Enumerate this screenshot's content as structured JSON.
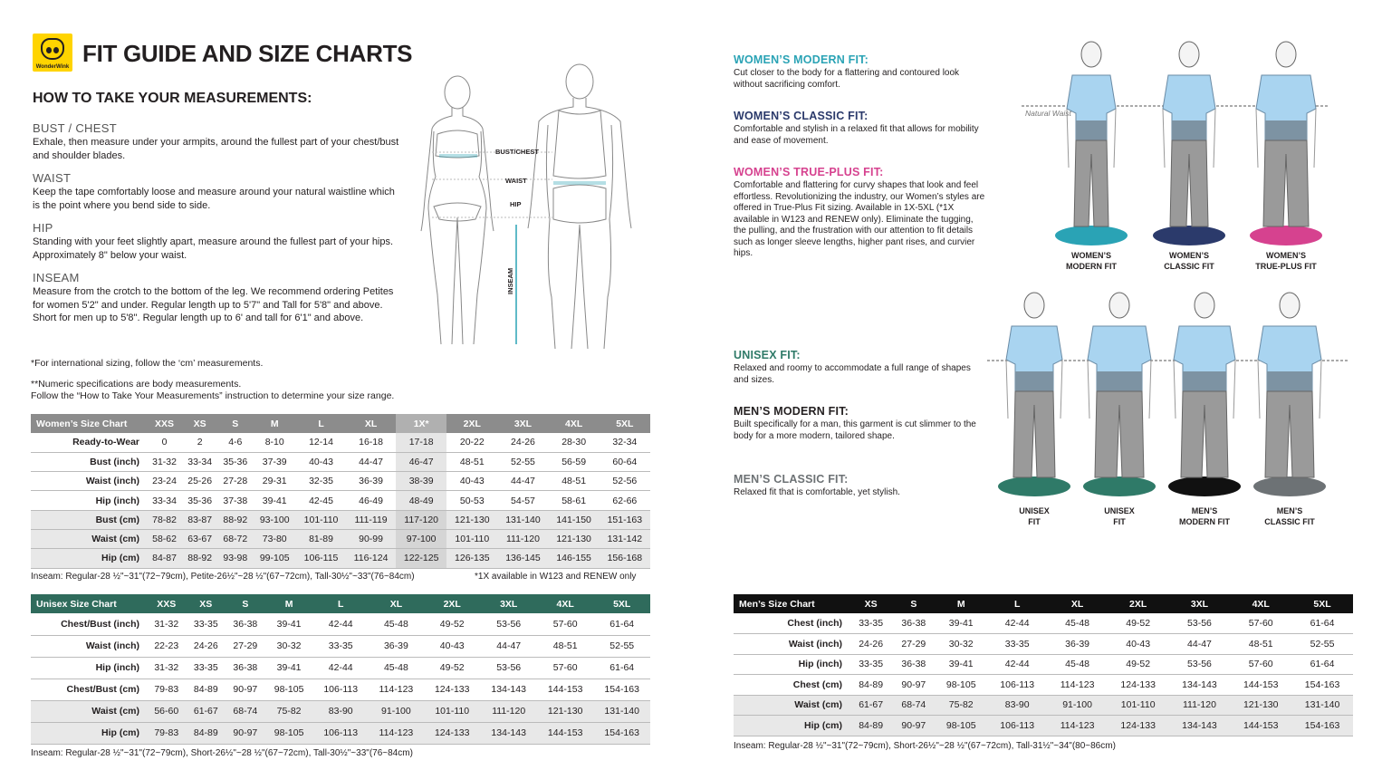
{
  "header": {
    "title": "FIT GUIDE AND SIZE CHARTS",
    "logo_text": "WonderWink"
  },
  "measure": {
    "heading": "HOW TO TAKE YOUR MEASUREMENTS:",
    "sections": [
      {
        "title": "BUST / CHEST",
        "text": "Exhale, then measure under your armpits, around the fullest part of your chest/bust and shoulder blades."
      },
      {
        "title": "WAIST",
        "text": "Keep the tape comfortably loose and measure around your natural waistline which is the point where you bend side to side."
      },
      {
        "title": "HIP",
        "text": "Standing with your feet slightly apart, measure around the fullest part of your hips. Approximately 8\" below your waist."
      },
      {
        "title": "INSEAM",
        "text": "Measure from the crotch to the bottom of the leg. We recommend ordering Petites for women 5'2\" and under.  Regular length up to 5'7\" and Tall for 5'8\" and above.  Short for men up to 5'8\". Regular length up to 6' and tall for 6'1\" and above."
      }
    ],
    "note1": "*For international sizing, follow the ‘cm’ measurements.",
    "note2a": "**Numeric specifications are body measurements.",
    "note2b": "Follow the “How to Take Your Measurements” instruction to determine your size range."
  },
  "diagram": {
    "bust_label": "BUST/CHEST",
    "waist_label": "WAIST",
    "hip_label": "HIP",
    "inseam_label": "INSEAM"
  },
  "fits_women": [
    {
      "title": "WOMEN’S MODERN FIT:",
      "color": "#2aa3b5",
      "text": "Cut closer to the body for a flattering and contoured look without sacrificing comfort."
    },
    {
      "title": "WOMEN’S CLASSIC FIT:",
      "color": "#2b3a6b",
      "text": "Comfortable and stylish in a relaxed fit that allows for mobility and ease of movement."
    },
    {
      "title": "WOMEN’S TRUE-PLUS FIT:",
      "color": "#d6428f",
      "text": "Comfortable and flattering for curvy shapes that look and feel effortless. Revolutionizing the industry, our Women’s styles are offered in True-Plus Fit sizing. Available in 1X-5XL (*1X available in W123 and RENEW only). Eliminate the tugging, the pulling, and the frustration with our attention to fit details such as longer sleeve lengths, higher pant rises, and curvier hips."
    }
  ],
  "fits_unisex": [
    {
      "title": "UNISEX FIT:",
      "color": "#2f7a68",
      "text": "Relaxed and roomy to accommodate a full range of shapes and sizes."
    },
    {
      "title": "MEN’S MODERN FIT:",
      "color": "#231f20",
      "text": "Built specifically for a man, this garment is cut slimmer to the body for a more modern, tailored shape."
    },
    {
      "title": "MEN’S CLASSIC FIT:",
      "color": "#6d7275",
      "text": "Relaxed fit that is comfortable, yet stylish."
    }
  ],
  "figures": {
    "natural_waist": "Natural Waist",
    "women": [
      {
        "l1": "WOMEN’S",
        "l2": "MODERN FIT",
        "base": "#2aa3b5"
      },
      {
        "l1": "WOMEN’S",
        "l2": "CLASSIC FIT",
        "base": "#2b3a6b"
      },
      {
        "l1": "WOMEN’S",
        "l2": "TRUE-PLUS FIT",
        "base": "#d6428f"
      }
    ],
    "men": [
      {
        "l1": "UNISEX",
        "l2": "FIT",
        "base": "#2f7a68"
      },
      {
        "l1": "UNISEX",
        "l2": "FIT",
        "base": "#2f7a68"
      },
      {
        "l1": "MEN’S",
        "l2": "MODERN FIT",
        "base": "#111111"
      },
      {
        "l1": "MEN’S",
        "l2": "CLASSIC FIT",
        "base": "#6d7275"
      }
    ]
  },
  "womens_table": {
    "title": "Women’s Size Chart",
    "color": "#8c8c8c",
    "sizes": [
      "XXS",
      "XS",
      "S",
      "M",
      "L",
      "XL",
      "1X*",
      "2XL",
      "3XL",
      "4XL",
      "5XL"
    ],
    "rows": [
      {
        "label": "Ready-to-Wear",
        "values": [
          "0",
          "2",
          "4-6",
          "8-10",
          "12-14",
          "16-18",
          "17-18",
          "20-22",
          "24-26",
          "28-30",
          "32-34"
        ]
      },
      {
        "label": "Bust (inch)",
        "values": [
          "31-32",
          "33-34",
          "35-36",
          "37-39",
          "40-43",
          "44-47",
          "46-47",
          "48-51",
          "52-55",
          "56-59",
          "60-64"
        ]
      },
      {
        "label": "Waist (inch)",
        "values": [
          "23-24",
          "25-26",
          "27-28",
          "29-31",
          "32-35",
          "36-39",
          "38-39",
          "40-43",
          "44-47",
          "48-51",
          "52-56"
        ]
      },
      {
        "label": "Hip (inch)",
        "values": [
          "33-34",
          "35-36",
          "37-38",
          "39-41",
          "42-45",
          "46-49",
          "48-49",
          "50-53",
          "54-57",
          "58-61",
          "62-66"
        ]
      },
      {
        "label": "Bust (cm)",
        "values": [
          "78-82",
          "83-87",
          "88-92",
          "93-100",
          "101-110",
          "111-119",
          "117-120",
          "121-130",
          "131-140",
          "141-150",
          "151-163"
        ]
      },
      {
        "label": "Waist (cm)",
        "values": [
          "58-62",
          "63-67",
          "68-72",
          "73-80",
          "81-89",
          "90-99",
          "97-100",
          "101-110",
          "111-120",
          "121-130",
          "131-142"
        ]
      },
      {
        "label": "Hip (cm)",
        "values": [
          "84-87",
          "88-92",
          "93-98",
          "99-105",
          "106-115",
          "116-124",
          "122-125",
          "126-135",
          "136-145",
          "146-155",
          "156-168"
        ]
      }
    ],
    "inseam": "Inseam: Regular-28 ½\"~31\"(72~79cm),  Petite-26½\"~28 ½\"(67~72cm),  Tall-30½\"~33\"(76~84cm)",
    "footnote": "*1X available in W123 and RENEW only"
  },
  "unisex_table": {
    "title": "Unisex Size Chart",
    "color": "#2f6b5c",
    "sizes": [
      "XXS",
      "XS",
      "S",
      "M",
      "L",
      "XL",
      "2XL",
      "3XL",
      "4XL",
      "5XL"
    ],
    "rows": [
      {
        "label": "Chest/Bust (inch)",
        "values": [
          "31-32",
          "33-35",
          "36-38",
          "39-41",
          "42-44",
          "45-48",
          "49-52",
          "53-56",
          "57-60",
          "61-64"
        ]
      },
      {
        "label": "Waist (inch)",
        "values": [
          "22-23",
          "24-26",
          "27-29",
          "30-32",
          "33-35",
          "36-39",
          "40-43",
          "44-47",
          "48-51",
          "52-55"
        ]
      },
      {
        "label": "Hip (inch)",
        "values": [
          "31-32",
          "33-35",
          "36-38",
          "39-41",
          "42-44",
          "45-48",
          "49-52",
          "53-56",
          "57-60",
          "61-64"
        ]
      },
      {
        "label": "Chest/Bust (cm)",
        "values": [
          "79-83",
          "84-89",
          "90-97",
          "98-105",
          "106-113",
          "114-123",
          "124-133",
          "134-143",
          "144-153",
          "154-163"
        ]
      },
      {
        "label": "Waist (cm)",
        "values": [
          "56-60",
          "61-67",
          "68-74",
          "75-82",
          "83-90",
          "91-100",
          "101-110",
          "111-120",
          "121-130",
          "131-140"
        ]
      },
      {
        "label": "Hip (cm)",
        "values": [
          "79-83",
          "84-89",
          "90-97",
          "98-105",
          "106-113",
          "114-123",
          "124-133",
          "134-143",
          "144-153",
          "154-163"
        ]
      }
    ],
    "inseam": "Inseam: Regular-28 ½\"~31\"(72~79cm),  Short-26½\"~28 ½\"(67~72cm),  Tall-30½\"~33\"(76~84cm)"
  },
  "mens_table": {
    "title": "Men’s Size Chart",
    "color": "#111111",
    "sizes": [
      "XS",
      "S",
      "M",
      "L",
      "XL",
      "2XL",
      "3XL",
      "4XL",
      "5XL"
    ],
    "rows": [
      {
        "label": "Chest (inch)",
        "values": [
          "33-35",
          "36-38",
          "39-41",
          "42-44",
          "45-48",
          "49-52",
          "53-56",
          "57-60",
          "61-64"
        ]
      },
      {
        "label": "Waist (inch)",
        "values": [
          "24-26",
          "27-29",
          "30-32",
          "33-35",
          "36-39",
          "40-43",
          "44-47",
          "48-51",
          "52-55"
        ]
      },
      {
        "label": "Hip (inch)",
        "values": [
          "33-35",
          "36-38",
          "39-41",
          "42-44",
          "45-48",
          "49-52",
          "53-56",
          "57-60",
          "61-64"
        ]
      },
      {
        "label": "Chest (cm)",
        "values": [
          "84-89",
          "90-97",
          "98-105",
          "106-113",
          "114-123",
          "124-133",
          "134-143",
          "144-153",
          "154-163"
        ]
      },
      {
        "label": "Waist (cm)",
        "values": [
          "61-67",
          "68-74",
          "75-82",
          "83-90",
          "91-100",
          "101-110",
          "111-120",
          "121-130",
          "131-140"
        ]
      },
      {
        "label": "Hip (cm)",
        "values": [
          "84-89",
          "90-97",
          "98-105",
          "106-113",
          "114-123",
          "124-133",
          "134-143",
          "144-153",
          "154-163"
        ]
      }
    ],
    "inseam": "Inseam: Regular-28 ½\"~31\"(72~79cm),  Short-26½\"~28 ½\"(67~72cm),  Tall-31½\"~34\"(80~86cm)"
  }
}
